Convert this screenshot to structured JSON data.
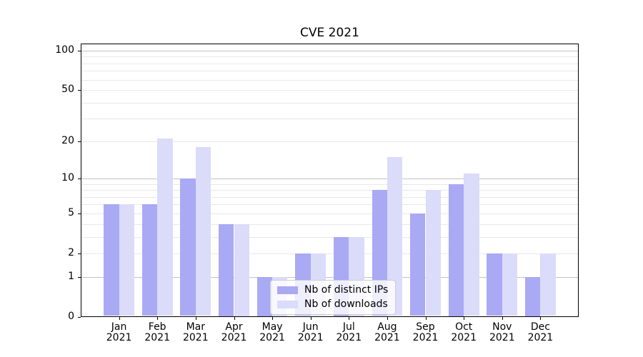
{
  "chart_data": {
    "type": "bar",
    "title": "CVE 2021",
    "categories": [
      "Jan",
      "Feb",
      "Mar",
      "Apr",
      "May",
      "Jun",
      "Jul",
      "Aug",
      "Sep",
      "Oct",
      "Nov",
      "Dec"
    ],
    "category_year": "2021",
    "series": [
      {
        "name": "Nb of distinct IPs",
        "color": "#a9a9f4",
        "values": [
          6,
          6,
          10,
          4,
          1,
          2,
          3,
          8,
          5,
          9,
          2,
          1
        ]
      },
      {
        "name": "Nb of downloads",
        "color": "#dbdbfa",
        "values": [
          6,
          21,
          18,
          4,
          1,
          2,
          3,
          15,
          8,
          11,
          2,
          2
        ]
      }
    ],
    "yaxis": {
      "scale": "log1p",
      "ylim": [
        0,
        113
      ],
      "ticks": [
        0,
        1,
        2,
        5,
        10,
        20,
        50,
        100
      ],
      "major_gridlines": [
        1,
        10,
        100
      ],
      "minor_gridlines": [
        2,
        3,
        4,
        5,
        6,
        7,
        8,
        9,
        20,
        30,
        40,
        50,
        60,
        70,
        80,
        90
      ]
    },
    "xlabel": "",
    "ylabel": "",
    "grid": true,
    "legend_position": "lower center"
  },
  "colors": {
    "background": "#ffffff",
    "axis": "#000000",
    "major_grid": "#c3c3c3",
    "minor_grid": "#e8e8e8",
    "legend_border": "#cccccc"
  }
}
